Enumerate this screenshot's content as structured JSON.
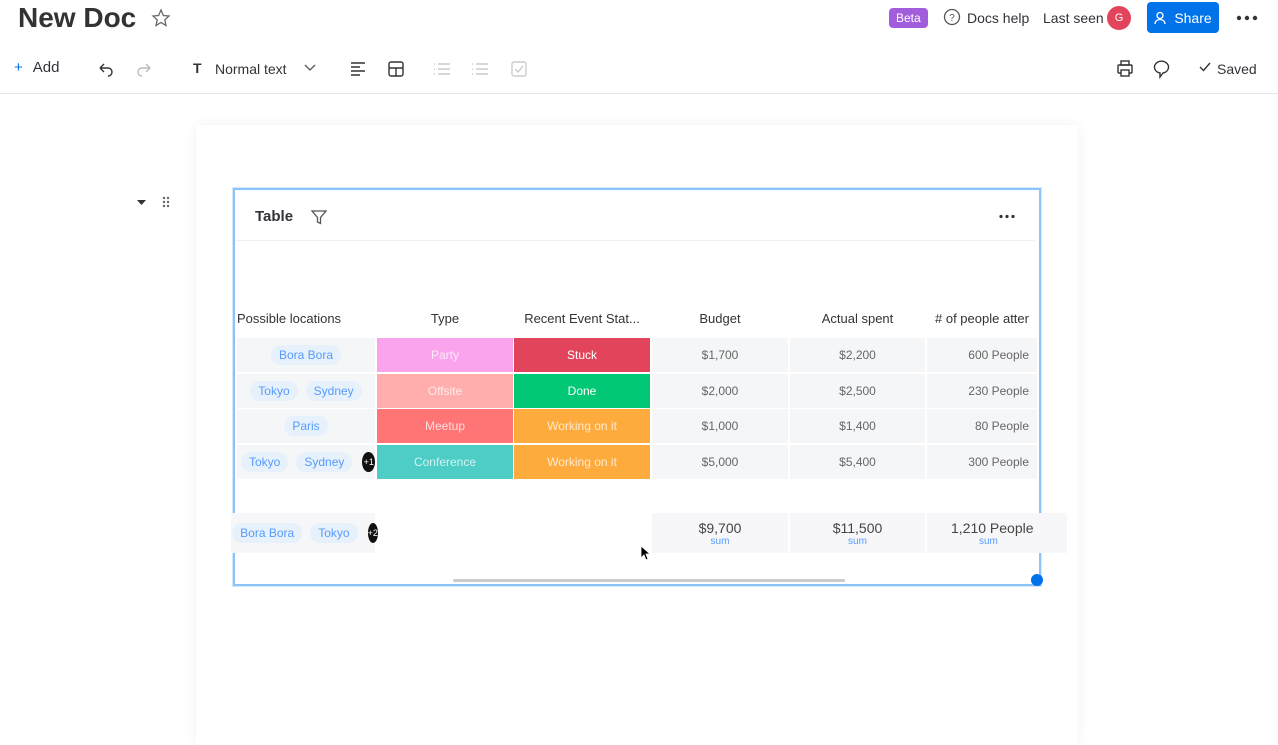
{
  "header": {
    "title": "New Doc",
    "beta": "Beta",
    "docs_help": "Docs help",
    "last_seen": "Last seen",
    "avatar": "G",
    "share": "Share"
  },
  "toolbar": {
    "add": "Add",
    "text_style": "Normal text",
    "saved": "Saved"
  },
  "table": {
    "title": "Table",
    "columns": [
      "Possible locations",
      "Type",
      "Recent Event Stat...",
      "Budget",
      "Actual spent",
      "# of people atter"
    ],
    "rows": [
      {
        "locations": [
          "Bora Bora"
        ],
        "type": "Party",
        "status": "Stuck",
        "budget": "$1,700",
        "spent": "$2,200",
        "people": "600 People"
      },
      {
        "locations": [
          "Tokyo",
          "Sydney"
        ],
        "type": "Offsite",
        "status": "Done",
        "budget": "$2,000",
        "spent": "$2,500",
        "people": "230 People"
      },
      {
        "locations": [
          "Paris"
        ],
        "type": "Meetup",
        "status": "Working on it",
        "budget": "$1,000",
        "spent": "$1,400",
        "people": "80 People"
      },
      {
        "locations": [
          "Tokyo",
          "Sydney"
        ],
        "more": "+1",
        "type": "Conference",
        "status": "Working on it",
        "budget": "$5,000",
        "spent": "$5,400",
        "people": "300 People"
      }
    ],
    "summary": {
      "locations": [
        "Bora Bora",
        "Tokyo"
      ],
      "more": "+2",
      "budget": "$9,700",
      "spent": "$11,500",
      "people": "1,210 People",
      "label": "sum"
    }
  }
}
